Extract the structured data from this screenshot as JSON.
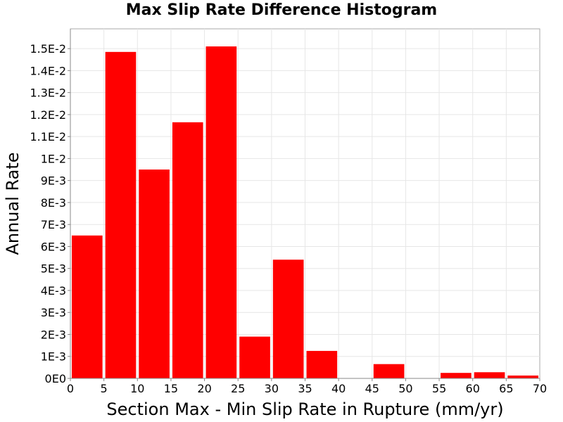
{
  "chart_data": {
    "type": "bar",
    "title": "Max Slip Rate Difference Histogram",
    "xlabel": "Section Max - Min Slip Rate in Rupture (mm/yr)",
    "ylabel": "Annual Rate",
    "bin_width": 5,
    "bin_starts": [
      0,
      5,
      10,
      15,
      20,
      25,
      30,
      35,
      40,
      45,
      50,
      55,
      60,
      65
    ],
    "values": [
      0.0065,
      0.01485,
      0.0095,
      0.01165,
      0.0151,
      0.0019,
      0.0054,
      0.00125,
      0,
      0.00065,
      0,
      0.00025,
      0.00028,
      0.00013
    ],
    "xlim": [
      0,
      70
    ],
    "ylim": [
      0,
      0.0159
    ],
    "x_ticks": [
      0,
      5,
      10,
      15,
      20,
      25,
      30,
      35,
      40,
      45,
      50,
      55,
      60,
      65,
      70
    ],
    "y_ticks": [
      0,
      0.001,
      0.002,
      0.003,
      0.004,
      0.005,
      0.006,
      0.007,
      0.008,
      0.009,
      0.01,
      0.011,
      0.012,
      0.013,
      0.014,
      0.015
    ],
    "y_tick_labels": [
      "0E0",
      "1E-3",
      "2E-3",
      "3E-3",
      "4E-3",
      "5E-3",
      "6E-3",
      "7E-3",
      "8E-3",
      "9E-3",
      "1E-2",
      "1.1E-2",
      "1.2E-2",
      "1.3E-2",
      "1.4E-2",
      "1.5E-2"
    ],
    "bar_color": "#ff0000",
    "grid": true,
    "legend": "none"
  }
}
